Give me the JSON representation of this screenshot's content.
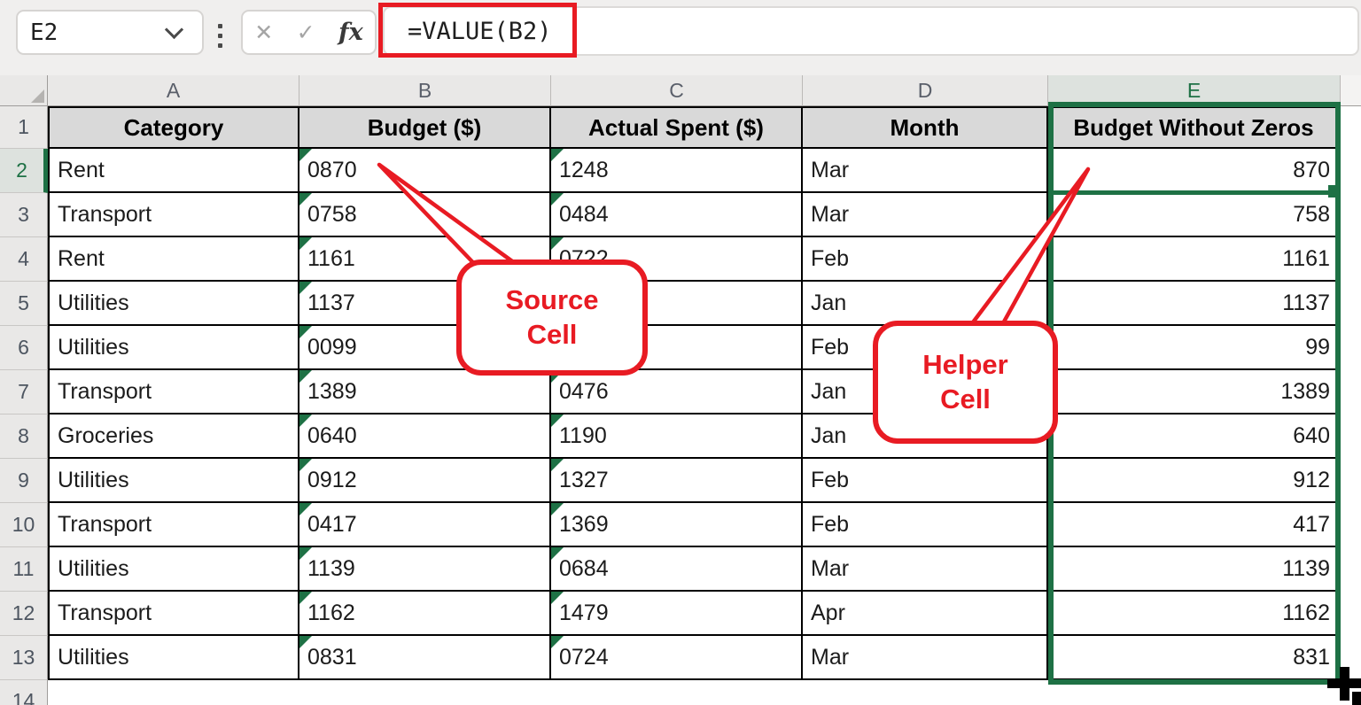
{
  "formula_bar": {
    "name_box_value": "E2",
    "formula": "=VALUE(B2)",
    "cancel_icon": "✕",
    "enter_icon": "✓",
    "fx_icon": "fx"
  },
  "sheet": {
    "column_letters": [
      "A",
      "B",
      "C",
      "D",
      "E"
    ],
    "selected_column": "E",
    "selected_row": 2,
    "header_row": [
      "Category",
      "Budget ($)",
      "Actual Spent ($)",
      "Month",
      "Budget Without Zeros"
    ],
    "data_rows": [
      {
        "n": 2,
        "cells": [
          "Rent",
          "0870",
          "1248",
          "Mar",
          "870"
        ]
      },
      {
        "n": 3,
        "cells": [
          "Transport",
          "0758",
          "0484",
          "Mar",
          "758"
        ]
      },
      {
        "n": 4,
        "cells": [
          "Rent",
          "1161",
          "0722",
          "Feb",
          "1161"
        ]
      },
      {
        "n": 5,
        "cells": [
          "Utilities",
          "1137",
          "",
          "Jan",
          "1137"
        ]
      },
      {
        "n": 6,
        "cells": [
          "Utilities",
          "0099",
          "",
          "Feb",
          "99"
        ]
      },
      {
        "n": 7,
        "cells": [
          "Transport",
          "1389",
          "0476",
          "Jan",
          "1389"
        ]
      },
      {
        "n": 8,
        "cells": [
          "Groceries",
          "0640",
          "1190",
          "Jan",
          "640"
        ]
      },
      {
        "n": 9,
        "cells": [
          "Utilities",
          "0912",
          "1327",
          "Feb",
          "912"
        ]
      },
      {
        "n": 10,
        "cells": [
          "Transport",
          "0417",
          "1369",
          "Feb",
          "417"
        ]
      },
      {
        "n": 11,
        "cells": [
          "Utilities",
          "1139",
          "0684",
          "Mar",
          "1139"
        ]
      },
      {
        "n": 12,
        "cells": [
          "Transport",
          "1162",
          "1479",
          "Apr",
          "1162"
        ]
      },
      {
        "n": 13,
        "cells": [
          "Utilities",
          "0831",
          "0724",
          "Mar",
          "831"
        ]
      }
    ],
    "partial_row": 14,
    "error_triangle_columns": [
      1,
      2
    ]
  },
  "annotations": {
    "source_callout": {
      "line1": "Source",
      "line2": "Cell"
    },
    "helper_callout": {
      "line1": "Helper",
      "line2": "Cell"
    },
    "red_color": "#e81b23",
    "selection_green": "#1e7145"
  },
  "cursor": {
    "fill_handle_plus": "+"
  }
}
